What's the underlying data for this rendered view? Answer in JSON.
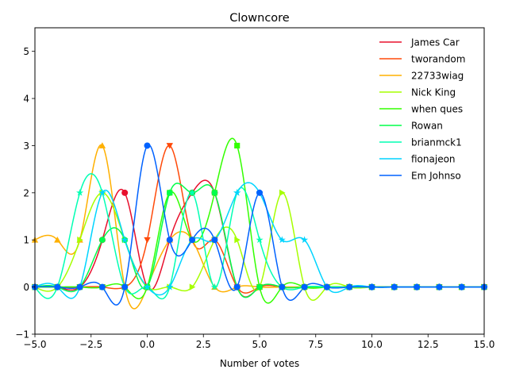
{
  "chart_data": {
    "type": "line",
    "title": "Clowncore",
    "xlabel": "Number of votes",
    "ylabel": "",
    "xlim": [
      -5,
      15
    ],
    "ylim": [
      -1,
      5.5
    ],
    "xticks": [
      -5.0,
      -2.5,
      0.0,
      2.5,
      5.0,
      7.5,
      10.0,
      12.5,
      15.0
    ],
    "xtick_labels": [
      "−5.0",
      "−2.5",
      "0.0",
      "2.5",
      "5.0",
      "7.5",
      "10.0",
      "12.5",
      "15.0"
    ],
    "yticks": [
      -1,
      0,
      1,
      2,
      3,
      4,
      5
    ],
    "ytick_labels": [
      "−1",
      "0",
      "1",
      "2",
      "3",
      "4",
      "5"
    ],
    "grid": false,
    "legend_position": "top-right",
    "smooth": "spline",
    "x": [
      -5,
      -4,
      -3,
      -2,
      -1,
      0,
      1,
      2,
      3,
      4,
      5,
      6,
      7,
      8,
      9,
      10,
      11,
      12,
      13,
      14,
      15
    ],
    "series": [
      {
        "name": "James Car",
        "color": "#e8102d",
        "marker": "circle",
        "values": [
          0,
          0,
          0,
          1,
          2,
          0,
          1,
          2,
          2,
          0,
          0,
          0,
          0,
          0,
          0,
          0,
          0,
          0,
          0,
          0,
          0
        ]
      },
      {
        "name": "tworandom",
        "color": "#ff4a0a",
        "marker": "triangle-down",
        "values": [
          0,
          0,
          0,
          0,
          0,
          1,
          3,
          1,
          1,
          0,
          0,
          0,
          0,
          0,
          0,
          0,
          0,
          0,
          0,
          0,
          0
        ]
      },
      {
        "name": "22733wiag",
        "color": "#ffb000",
        "marker": "triangle-up",
        "values": [
          1,
          1,
          1,
          3,
          0,
          0,
          1,
          1,
          0,
          0,
          0,
          0,
          0,
          0,
          0,
          0,
          0,
          0,
          0,
          0,
          0
        ]
      },
      {
        "name": "Nick King",
        "color": "#a6ff00",
        "marker": "triangle-right",
        "values": [
          0,
          0,
          1,
          2,
          1,
          0,
          0,
          0,
          1,
          1,
          0,
          2,
          0,
          0,
          0,
          0,
          0,
          0,
          0,
          0,
          0
        ]
      },
      {
        "name": "when ques",
        "color": "#33ff00",
        "marker": "square",
        "values": [
          0,
          0,
          0,
          0,
          0,
          0,
          2,
          1,
          2,
          3,
          0,
          0,
          0,
          0,
          0,
          0,
          0,
          0,
          0,
          0,
          0
        ]
      },
      {
        "name": "Rowan",
        "color": "#00ff4a",
        "marker": "hexagon",
        "values": [
          0,
          0,
          0,
          1,
          1,
          0,
          2,
          2,
          2,
          0,
          0,
          0,
          0,
          0,
          0,
          0,
          0,
          0,
          0,
          0,
          0
        ]
      },
      {
        "name": "brianmck1",
        "color": "#00ffb3",
        "marker": "star",
        "values": [
          0,
          0,
          2,
          2,
          0,
          0,
          0,
          2,
          0,
          2,
          1,
          0,
          0,
          0,
          0,
          0,
          0,
          0,
          0,
          0,
          0
        ]
      },
      {
        "name": "fionajeon",
        "color": "#00d4ff",
        "marker": "star",
        "values": [
          0,
          0,
          0,
          2,
          1,
          0,
          0,
          1,
          1,
          2,
          2,
          1,
          1,
          0,
          0,
          0,
          0,
          0,
          0,
          0,
          0
        ]
      },
      {
        "name": "Em Johnso",
        "color": "#0062ff",
        "marker": "circle",
        "values": [
          0,
          0,
          0,
          0,
          0,
          3,
          1,
          1,
          1,
          0,
          2,
          0,
          0,
          0,
          0,
          0,
          0,
          0,
          0,
          0,
          0
        ]
      }
    ]
  }
}
